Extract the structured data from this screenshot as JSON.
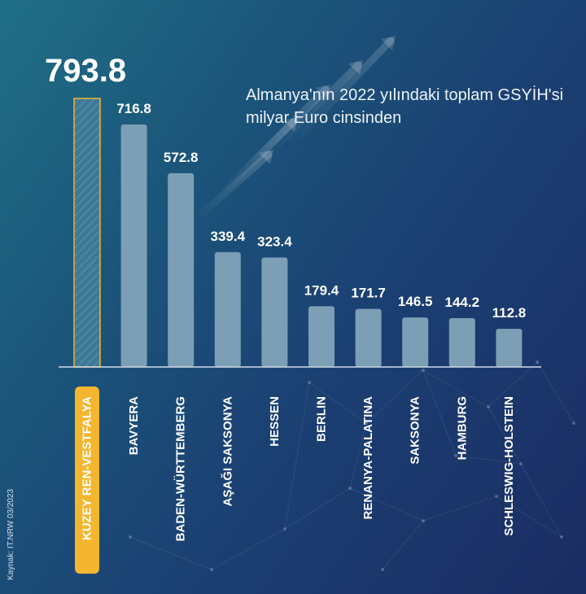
{
  "chart_data": {
    "type": "bar",
    "title": "Almanya'nın 2022 yılındaki toplam GSYİH'si milyar Euro cinsinden",
    "categories": [
      "KUZEY REN-VESTFALYA",
      "BAVYERA",
      "BADEN-WÜRTTEMBERG",
      "AŞAĞI SAKSONYA",
      "HESSEN",
      "BERLIN",
      "RENANYA-PALATINA",
      "SAKSONYA",
      "HAMBURG",
      "SCHLESWIG-HOLSTEIN"
    ],
    "values": [
      793.8,
      716.8,
      572.8,
      339.4,
      323.4,
      179.4,
      171.7,
      146.5,
      144.2,
      112.8
    ],
    "value_labels": [
      "793.8",
      "716.8",
      "572.8",
      "339.4",
      "323.4",
      "179.4",
      "171.7",
      "146.5",
      "144.2",
      "112.8"
    ],
    "highlight_index": 0,
    "ylim": [
      0,
      793.8
    ],
    "xlabel": "",
    "ylabel": "",
    "grid": false,
    "legend": "none"
  },
  "source": "Kaynak: IT.NRW 03/2023",
  "colors": {
    "bar": "#7d9fb6",
    "highlight_fill": "#3d7996",
    "highlight_border": "#f4b62e",
    "highlight_label_bg": "#f4b62e",
    "label_text": "#ffffff",
    "axis": "#d2dce6"
  }
}
